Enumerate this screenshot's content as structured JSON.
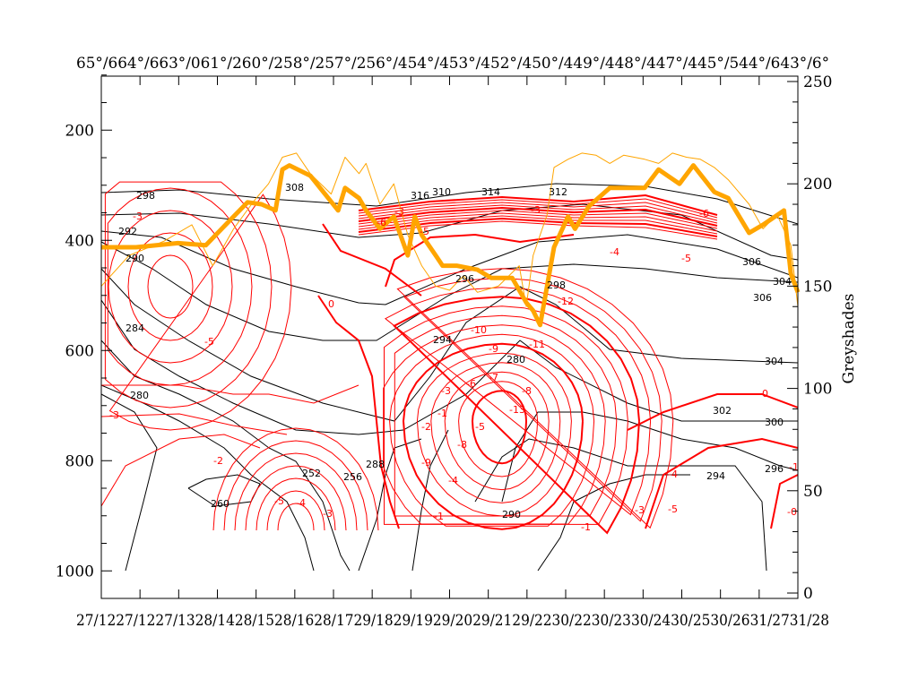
{
  "chart_data": {
    "type": "line",
    "title": "",
    "top_axis_label_text": "65°/664°/663°/061°/260°/258°/257°/256°/454°/453°/452°/450°/449°/448°/447°/445°/544°/643°/6°",
    "bottom_axis_label_text": "27/1227/1227/1328/1428/1528/1628/1729/1829/1929/2029/2129/2230/2230/2330/2430/2530/2631/2731/28",
    "left_axis": {
      "ticks": [
        "200",
        "400",
        "600",
        "800",
        "1000"
      ],
      "tick_values": [
        200,
        400,
        600,
        800,
        1000
      ],
      "range": [
        102,
        1050
      ],
      "inverted": true
    },
    "right_axis": {
      "label": "Greyshades",
      "ticks": [
        "0",
        "50",
        "100",
        "150",
        "200",
        "250"
      ],
      "tick_values": [
        0,
        50,
        100,
        150,
        200,
        250
      ],
      "range": [
        0,
        250
      ]
    },
    "x_range": [
      0,
      100
    ],
    "series": [
      {
        "name": "greyshades-thick",
        "color": "#ffa500",
        "x": [
          0,
          5,
          11,
          15,
          19,
          21,
          23,
          25,
          26,
          27,
          30,
          34,
          35,
          37,
          38,
          40,
          42,
          44,
          45,
          46,
          48,
          49,
          51,
          54,
          56,
          59,
          61,
          62,
          63,
          65,
          67,
          68,
          70,
          73,
          75,
          78,
          80,
          83,
          85,
          88,
          90,
          93,
          95,
          98,
          99,
          100
        ],
        "y": [
          169,
          169,
          171,
          170,
          184,
          191,
          190,
          187,
          207,
          209,
          204,
          187,
          198,
          193,
          187,
          178,
          184,
          165,
          184,
          175,
          165,
          160,
          160,
          158,
          154,
          154,
          142,
          138,
          131,
          169,
          184,
          178,
          189,
          198,
          198,
          198,
          207,
          200,
          209,
          196,
          193,
          176,
          180,
          187,
          156,
          147
        ]
      },
      {
        "name": "greyshades-thin",
        "color": "#ffa500",
        "x": [
          0,
          4,
          9,
          13,
          16,
          19,
          22,
          24,
          26,
          28,
          30,
          33,
          35,
          37,
          38,
          40,
          42,
          44,
          46,
          48,
          50,
          52,
          54,
          57,
          60,
          61,
          62,
          64,
          65,
          67,
          69,
          71,
          73,
          75,
          78,
          80,
          82,
          84,
          86,
          88,
          90,
          93,
          95,
          97,
          99,
          100
        ],
        "y": [
          150,
          165,
          172,
          180,
          160,
          178,
          192,
          200,
          213,
          215,
          205,
          195,
          213,
          205,
          210,
          190,
          200,
          175,
          160,
          150,
          148,
          155,
          147,
          150,
          160,
          140,
          165,
          185,
          208,
          212,
          215,
          214,
          210,
          214,
          212,
          210,
          215,
          213,
          212,
          208,
          202,
          190,
          178,
          185,
          170,
          140
        ]
      }
    ],
    "contours": {
      "theta_labels": [
        "298",
        "292",
        "290",
        "284",
        "280",
        "260",
        "252",
        "256",
        "288",
        "294",
        "296",
        "298",
        "304",
        "306",
        "308",
        "310",
        "312",
        "314",
        "316",
        "306",
        "304",
        "302",
        "300",
        "296",
        "294",
        "290",
        "280"
      ],
      "red_labels": [
        "-3",
        "-5",
        "-3",
        "-2",
        "0",
        "-5",
        "-3",
        "-6",
        "-3",
        "-4",
        "-5",
        "-6",
        "-8",
        "-9",
        "-1",
        "-2",
        "-3",
        "-4",
        "-5",
        "-6",
        "-7",
        "-8",
        "-9",
        "-10",
        "-11",
        "-12",
        "-13",
        "-1",
        "-3",
        "-5",
        "-4",
        "0",
        "-1",
        "-3",
        "-4",
        "-5",
        "-1",
        "-0"
      ]
    }
  }
}
